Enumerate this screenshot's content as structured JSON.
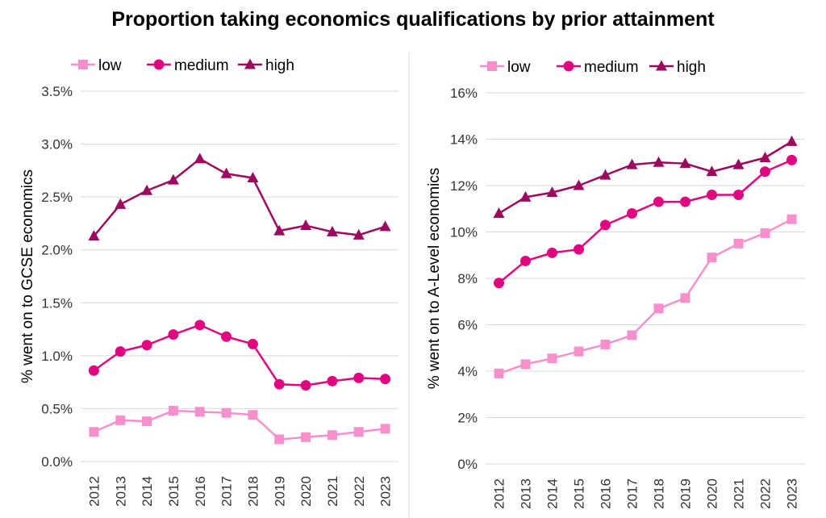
{
  "title": "Proportion taking economics qualifications by prior attainment",
  "chart_data": [
    {
      "type": "line",
      "title": "",
      "xlabel": "",
      "ylabel": "% went on to GCSE economics",
      "categories": [
        "2012",
        "2013",
        "2014",
        "2015",
        "2016",
        "2017",
        "2018",
        "2019",
        "2020",
        "2021",
        "2022",
        "2023"
      ],
      "ylim": [
        0,
        3.5
      ],
      "yticks": [
        "0.0%",
        "0.5%",
        "1.0%",
        "1.5%",
        "2.0%",
        "2.5%",
        "3.0%",
        "3.5%"
      ],
      "grid": true,
      "legend": "top-left",
      "series": [
        {
          "name": "low",
          "marker": "square",
          "color": "#f78fcc",
          "values": [
            0.28,
            0.39,
            0.38,
            0.48,
            0.47,
            0.46,
            0.44,
            0.21,
            0.23,
            0.25,
            0.28,
            0.31
          ]
        },
        {
          "name": "medium",
          "marker": "circle",
          "color": "#e0067f",
          "values": [
            0.86,
            1.04,
            1.1,
            1.2,
            1.29,
            1.18,
            1.11,
            0.73,
            0.72,
            0.76,
            0.79,
            0.78
          ]
        },
        {
          "name": "high",
          "marker": "triangle",
          "color": "#9b0a5e",
          "values": [
            2.13,
            2.43,
            2.56,
            2.66,
            2.86,
            2.72,
            2.68,
            2.18,
            2.23,
            2.17,
            2.14,
            2.22
          ]
        }
      ]
    },
    {
      "type": "line",
      "title": "",
      "xlabel": "",
      "ylabel": "% went on to A-Level economics",
      "categories": [
        "2012",
        "2013",
        "2014",
        "2015",
        "2016",
        "2017",
        "2018",
        "2019",
        "2020",
        "2021",
        "2022",
        "2023"
      ],
      "ylim": [
        0,
        16
      ],
      "yticks": [
        "0%",
        "2%",
        "4%",
        "6%",
        "8%",
        "10%",
        "12%",
        "14%",
        "16%"
      ],
      "grid": true,
      "legend": "top-left",
      "series": [
        {
          "name": "low",
          "marker": "square",
          "color": "#f78fcc",
          "values": [
            3.9,
            4.3,
            4.55,
            4.85,
            5.15,
            5.55,
            6.7,
            7.15,
            8.9,
            9.5,
            9.95,
            10.55
          ]
        },
        {
          "name": "medium",
          "marker": "circle",
          "color": "#e0067f",
          "values": [
            7.8,
            8.75,
            9.1,
            9.25,
            10.3,
            10.8,
            11.3,
            11.3,
            11.6,
            11.6,
            12.6,
            13.1
          ]
        },
        {
          "name": "high",
          "marker": "triangle",
          "color": "#9b0a5e",
          "values": [
            10.8,
            11.5,
            11.7,
            12.0,
            12.45,
            12.9,
            13.0,
            12.95,
            12.6,
            12.9,
            13.2,
            13.9
          ]
        }
      ]
    }
  ]
}
